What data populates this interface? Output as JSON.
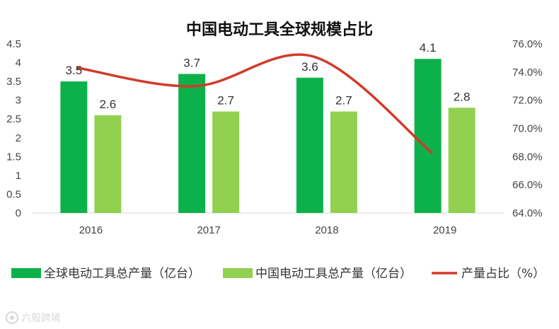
{
  "chart_data": {
    "type": "bar",
    "title": "中国电动工具全球规模占比",
    "categories": [
      "2016",
      "2017",
      "2018",
      "2019"
    ],
    "series": [
      {
        "name": "全球电动工具总产量（亿台）",
        "type": "bar",
        "axis": "left",
        "color": "#0db14b",
        "values": [
          3.5,
          3.7,
          3.6,
          4.1
        ],
        "labels": [
          "3.5",
          "3.7",
          "3.6",
          "4.1"
        ]
      },
      {
        "name": "中国电动工具总产量（亿台）",
        "type": "bar",
        "axis": "left",
        "color": "#92d050",
        "values": [
          2.6,
          2.7,
          2.7,
          2.8
        ],
        "labels": [
          "2.6",
          "2.7",
          "2.7",
          "2.8"
        ]
      },
      {
        "name": "产量占比（%）",
        "type": "line",
        "axis": "right",
        "color": "#d13b2a",
        "smooth": true,
        "values": [
          74.3,
          73.0,
          75.1,
          68.3
        ]
      }
    ],
    "y_left": {
      "range": [
        0,
        4.5
      ],
      "ticks": [
        "0",
        "0.5",
        "1",
        "1.5",
        "2",
        "2.5",
        "3",
        "3.5",
        "4",
        "4.5"
      ]
    },
    "y_right": {
      "range": [
        64,
        76
      ],
      "ticks": [
        "64.0%",
        "66.0%",
        "68.0%",
        "70.0%",
        "72.0%",
        "74.0%",
        "76.0%"
      ]
    },
    "grid": false,
    "legend_position": "bottom"
  },
  "watermark": {
    "text": "六般跨境",
    "icon": "brand-logo-icon"
  }
}
